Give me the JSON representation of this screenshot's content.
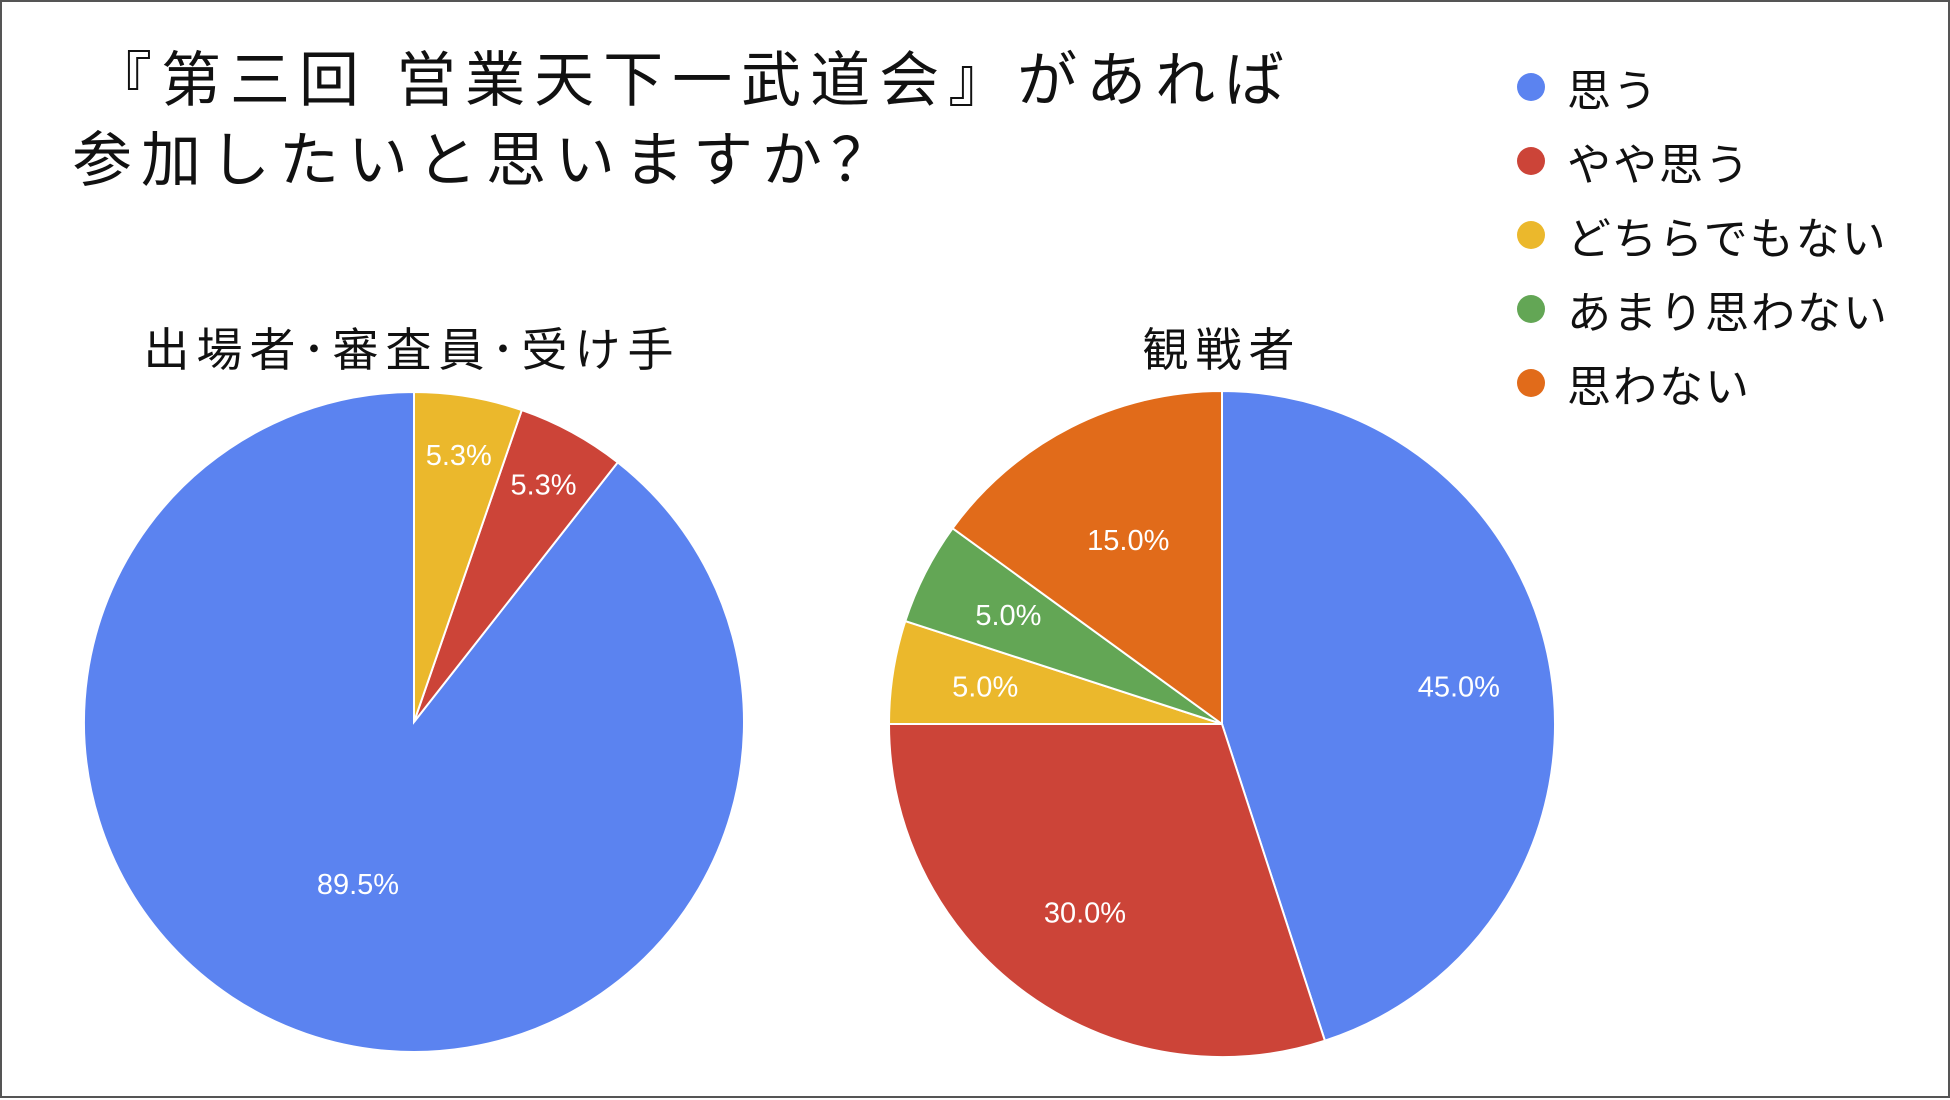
{
  "title": {
    "line1": "『第三回 営業天下一武道会』があれば",
    "line2": "参加したいと思いますか？"
  },
  "colors": {
    "思う": "#5b83f0",
    "やや思う": "#cc4438",
    "どちらでもない": "#ebb82c",
    "あまり思わない": "#63a655",
    "思わない": "#e16b1a"
  },
  "legend": [
    "思う",
    "やや思う",
    "どちらでもない",
    "あまり思わない",
    "思わない"
  ],
  "chart_data": [
    {
      "type": "pie",
      "title": "出場者･審査員･受け手",
      "categories": [
        "思う",
        "やや思う",
        "どちらでもない"
      ],
      "values": [
        89.5,
        5.3,
        5.3
      ],
      "labels": [
        "89.5%",
        "5.3%",
        "5.3%"
      ],
      "legend_position": "top-right"
    },
    {
      "type": "pie",
      "title": "観戦者",
      "categories": [
        "思う",
        "やや思う",
        "どちらでもない",
        "あまり思わない",
        "思わない"
      ],
      "values": [
        45.0,
        30.0,
        5.0,
        5.0,
        15.0
      ],
      "labels": [
        "45.0%",
        "30.0%",
        "5.0%",
        "5.0%",
        "15.0%"
      ],
      "legend_position": "top-right"
    }
  ]
}
